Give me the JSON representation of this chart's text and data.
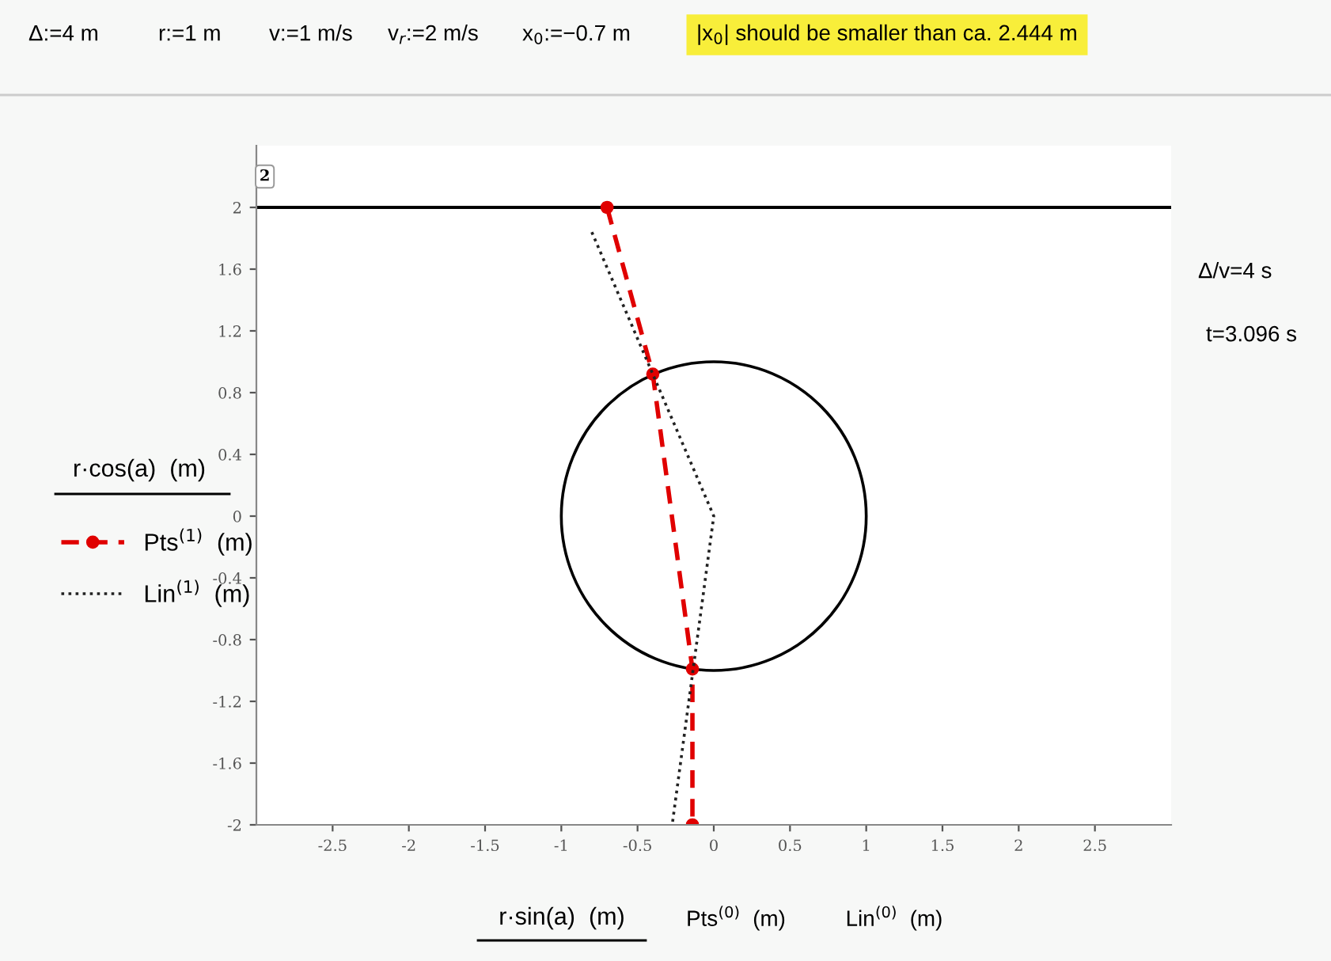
{
  "chart_data": {
    "type": "line",
    "xlabel": "r·sin(a)  (m)",
    "ylabel": "r·cos(a)  (m)",
    "xlim": [
      -3,
      3
    ],
    "ylim": [
      -2,
      2.4
    ],
    "xticks": [
      -2.5,
      -2,
      -1.5,
      -1,
      -0.5,
      0,
      0.5,
      1,
      1.5,
      2,
      2.5
    ],
    "yticks": [
      -2,
      -1.6,
      -1.2,
      -0.8,
      -0.4,
      0,
      0.4,
      0.8,
      1.2,
      1.6,
      2
    ],
    "grid": false,
    "legend": "left",
    "series": [
      {
        "name": "Pts$^{(1)}$  (m)",
        "color": "#e00000",
        "line_style": "dashed",
        "marker": "circle",
        "x": [
          -0.7,
          -0.4,
          -0.14,
          -0.14
        ],
        "values": [
          2,
          0.92,
          -0.99,
          -2
        ]
      },
      {
        "name": "Lin$^{(1)}$  (m)",
        "color": "#222222",
        "line_style": "dotted",
        "marker": "none",
        "x": [
          -0.8,
          0,
          -0.27
        ],
        "values": [
          1.84,
          0,
          -1.98
        ]
      }
    ],
    "ref_lines": [
      {
        "axis": "y",
        "value": 2,
        "label": "2",
        "color": "#000000",
        "line_style": "solid"
      }
    ],
    "annotations": [
      "Δ:=4 m",
      "r:=1 m",
      "v:=1 m/s",
      "v$_{r}$:=2 m/s",
      "x$_{0}$:=−0.7 m",
      "|x$_{0}$| should be smaller than ca. 2.444 m",
      "Δ/v=4 s",
      "t=3.096 s",
      "Pts$^{(0)}$  (m)",
      "Lin$^{(0)}$  (m)"
    ]
  }
}
